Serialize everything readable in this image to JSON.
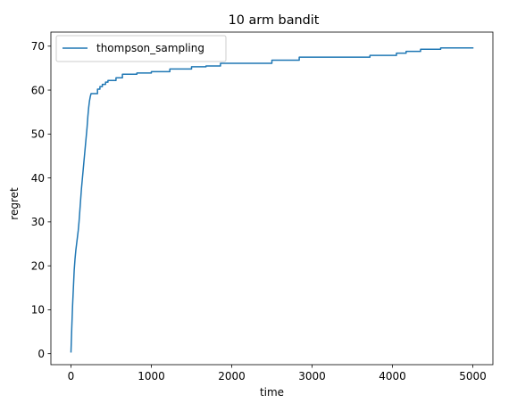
{
  "chart_data": {
    "type": "line",
    "title": "10 arm bandit",
    "xlabel": "time",
    "ylabel": "regret",
    "xlim": [
      -250,
      5250
    ],
    "ylim": [
      -2.5,
      73.2
    ],
    "xticks": [
      0,
      1000,
      2000,
      3000,
      4000,
      5000
    ],
    "yticks": [
      0,
      10,
      20,
      30,
      40,
      50,
      60,
      70
    ],
    "grid": false,
    "legend_position": "top-left",
    "series": [
      {
        "name": "thompson_sampling",
        "color": "#1f77b4",
        "points": [
          [
            0,
            0.4
          ],
          [
            10,
            6
          ],
          [
            20,
            11
          ],
          [
            30,
            15
          ],
          [
            40,
            19
          ],
          [
            50,
            21.5
          ],
          [
            60,
            23.5
          ],
          [
            70,
            25
          ],
          [
            80,
            26.5
          ],
          [
            90,
            28
          ],
          [
            100,
            30
          ],
          [
            110,
            32.5
          ],
          [
            120,
            35
          ],
          [
            130,
            37.5
          ],
          [
            140,
            39.5
          ],
          [
            150,
            41.5
          ],
          [
            160,
            43.5
          ],
          [
            170,
            45.5
          ],
          [
            180,
            47.5
          ],
          [
            190,
            49.5
          ],
          [
            200,
            51.5
          ],
          [
            210,
            54
          ],
          [
            220,
            56
          ],
          [
            230,
            57.5
          ],
          [
            240,
            58.5
          ],
          [
            250,
            59.2
          ],
          [
            330,
            59.2
          ],
          [
            330,
            60.2
          ],
          [
            360,
            60.2
          ],
          [
            360,
            60.8
          ],
          [
            390,
            60.8
          ],
          [
            390,
            61.3
          ],
          [
            430,
            61.3
          ],
          [
            430,
            61.8
          ],
          [
            460,
            61.8
          ],
          [
            460,
            62.2
          ],
          [
            560,
            62.2
          ],
          [
            560,
            62.8
          ],
          [
            640,
            62.8
          ],
          [
            640,
            63.6
          ],
          [
            820,
            63.6
          ],
          [
            820,
            63.9
          ],
          [
            1000,
            63.9
          ],
          [
            1000,
            64.2
          ],
          [
            1230,
            64.2
          ],
          [
            1230,
            64.8
          ],
          [
            1500,
            64.8
          ],
          [
            1500,
            65.3
          ],
          [
            1680,
            65.3
          ],
          [
            1680,
            65.5
          ],
          [
            1860,
            65.5
          ],
          [
            1860,
            66.1
          ],
          [
            2500,
            66.1
          ],
          [
            2500,
            66.8
          ],
          [
            2840,
            66.8
          ],
          [
            2840,
            67.5
          ],
          [
            3720,
            67.5
          ],
          [
            3720,
            67.9
          ],
          [
            4050,
            67.9
          ],
          [
            4050,
            68.4
          ],
          [
            4170,
            68.4
          ],
          [
            4170,
            68.8
          ],
          [
            4350,
            68.8
          ],
          [
            4350,
            69.3
          ],
          [
            4600,
            69.3
          ],
          [
            4600,
            69.6
          ],
          [
            5000,
            69.6
          ]
        ]
      }
    ]
  }
}
